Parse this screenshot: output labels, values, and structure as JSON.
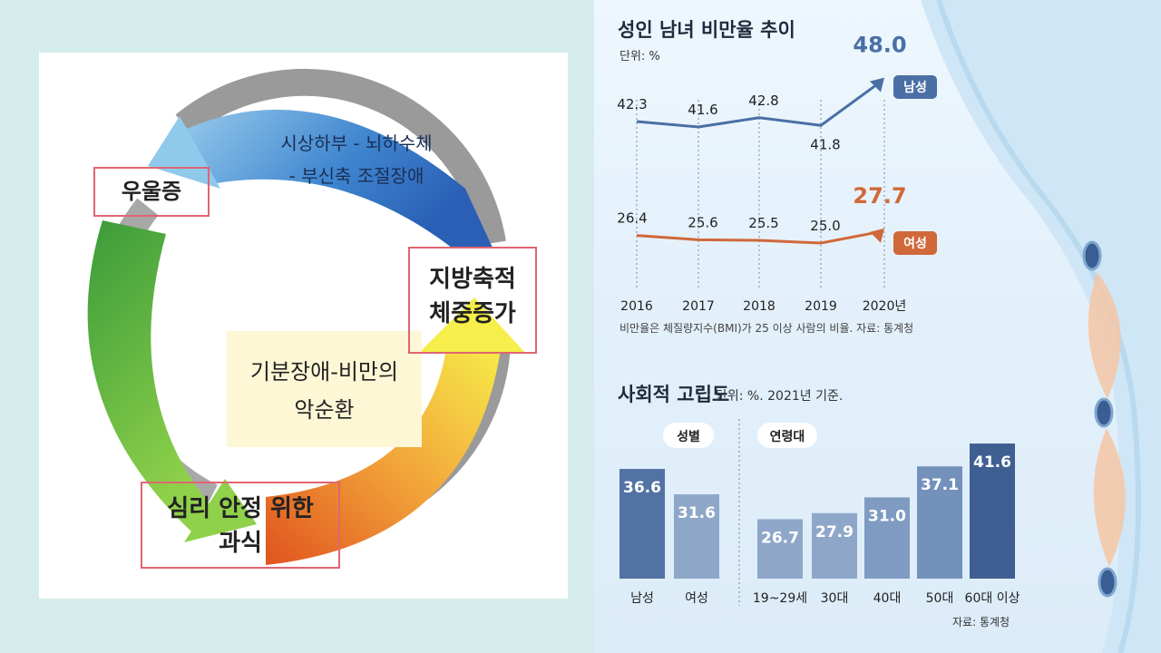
{
  "diagram": {
    "center_title_line1": "기분장애-비만의",
    "center_title_line2": "악순환",
    "top_arrow_line1": "시상하부  -  뇌하수체",
    "top_arrow_line2": "- 부신축 조절장애",
    "node_depression": "우울증",
    "node_fat_line1": "지방축적",
    "node_fat_line2": "체중증가",
    "node_eating_line1": "심리 안정 위한",
    "node_eating_line2": "과식"
  },
  "chart_data": [
    {
      "type": "line",
      "title": "성인 남녀 비만율 추이",
      "unit_label": "단위: %",
      "x": [
        "2016",
        "2017",
        "2018",
        "2019",
        "2020년"
      ],
      "series": [
        {
          "name": "남성",
          "values": [
            42.3,
            41.6,
            42.8,
            41.8,
            48.0
          ],
          "color": "#4a6fa5"
        },
        {
          "name": "여성",
          "values": [
            26.4,
            25.6,
            25.5,
            25.0,
            27.7
          ],
          "color": "#d0683a"
        }
      ],
      "value_labels": {
        "남성": [
          "42.3",
          "41.6",
          "42.8",
          "41.8",
          "48.0"
        ],
        "여성": [
          "26.4",
          "25.6",
          "25.5",
          "25.0",
          "27.7"
        ]
      },
      "footnote": "비만율은 체질량지수(BMI)가 25 이상 사람의 비율. 자료: 통계청",
      "grid": "vertical dotted lines"
    },
    {
      "type": "bar",
      "title": "사회적 고립도",
      "unit_label": "단위: %. 2021년 기준.",
      "groups": [
        {
          "name": "성별",
          "categories": [
            "남성",
            "여성"
          ],
          "values": [
            36.6,
            31.6
          ]
        },
        {
          "name": "연령대",
          "categories": [
            "19~29세",
            "30대",
            "40대",
            "50대",
            "60대 이상"
          ],
          "values": [
            26.7,
            27.9,
            31.0,
            37.1,
            41.6
          ]
        }
      ],
      "value_labels": [
        "36.6",
        "31.6",
        "26.7",
        "27.9",
        "31.0",
        "37.1",
        "41.6"
      ],
      "source": "자료: 통계청"
    }
  ],
  "colors": {
    "male_line": "#4a6fa5",
    "female_line": "#d0683a",
    "bar_dark": "#5272a3",
    "bar_light": "#8ea7c9",
    "bar_darkest": "#3f5f92"
  }
}
